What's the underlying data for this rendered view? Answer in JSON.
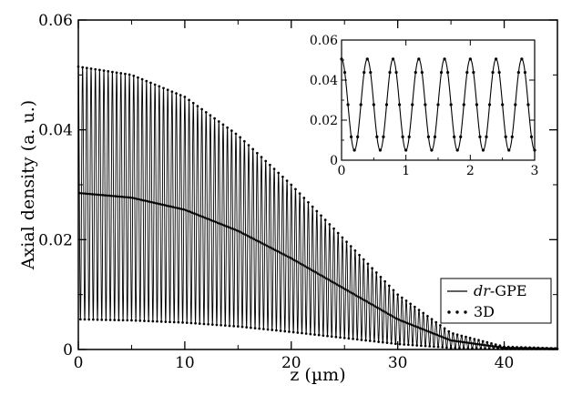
{
  "chart_data": [
    {
      "type": "line",
      "role": "main",
      "xlabel": "z (µm)",
      "ylabel": "Axial density (a. u.)",
      "xlim": [
        0,
        45
      ],
      "ylim": [
        0,
        0.06
      ],
      "x_ticks": [
        0,
        10,
        20,
        30,
        40
      ],
      "x_tick_labels": [
        "0",
        "10",
        "20",
        "30",
        "40"
      ],
      "y_ticks": [
        0,
        0.02,
        0.04,
        0.06
      ],
      "y_tick_labels": [
        "0",
        "0.02",
        "0.04",
        "0.06"
      ],
      "grid": false,
      "legend_position": "bottom-right",
      "modulation_period": 0.4,
      "series": [
        {
          "name": "dr-GPE",
          "style": "solid-line",
          "envelope_max": {
            "x": [
              0,
              5,
              10,
              15,
              20,
              25,
              30,
              35,
              40,
              45
            ],
            "y": [
              0.0515,
              0.05,
              0.046,
              0.039,
              0.03,
              0.02,
              0.01,
              0.003,
              0.0005,
              0.0002
            ]
          },
          "envelope_min": {
            "x": [
              0,
              5,
              10,
              15,
              20,
              25,
              30,
              35,
              40,
              45
            ],
            "y": [
              0.0055,
              0.0053,
              0.0049,
              0.0042,
              0.0032,
              0.0021,
              0.001,
              0.0003,
              0.0001,
              0.0001
            ]
          }
        },
        {
          "name": "3D",
          "style": "dots",
          "envelope_max": {
            "x": [
              0,
              5,
              10,
              15,
              20,
              25,
              30,
              35,
              40,
              45
            ],
            "y": [
              0.0515,
              0.05,
              0.046,
              0.039,
              0.03,
              0.02,
              0.01,
              0.003,
              0.0005,
              0.0002
            ]
          },
          "envelope_min": {
            "x": [
              0,
              5,
              10,
              15,
              20,
              25,
              30,
              35,
              40,
              45
            ],
            "y": [
              0.0055,
              0.0053,
              0.0049,
              0.0042,
              0.0032,
              0.0021,
              0.001,
              0.0003,
              0.0001,
              0.0001
            ]
          }
        }
      ],
      "legend": [
        {
          "prefix": "dr",
          "suffix": "-GPE",
          "style": "line"
        },
        {
          "prefix": "",
          "suffix": "3D",
          "style": "dots"
        }
      ]
    },
    {
      "type": "line",
      "role": "inset",
      "xlim": [
        0,
        3
      ],
      "ylim": [
        0,
        0.06
      ],
      "x_ticks": [
        0,
        1,
        2,
        3
      ],
      "x_tick_labels": [
        "0",
        "1",
        "2",
        "3"
      ],
      "y_ticks": [
        0,
        0.02,
        0.04,
        0.06
      ],
      "y_tick_labels": [
        "0",
        "0.02",
        "0.04",
        "0.06"
      ],
      "grid": false,
      "modulation_period": 0.4,
      "peak_value": 0.0505,
      "trough_value": 0.005
    }
  ]
}
